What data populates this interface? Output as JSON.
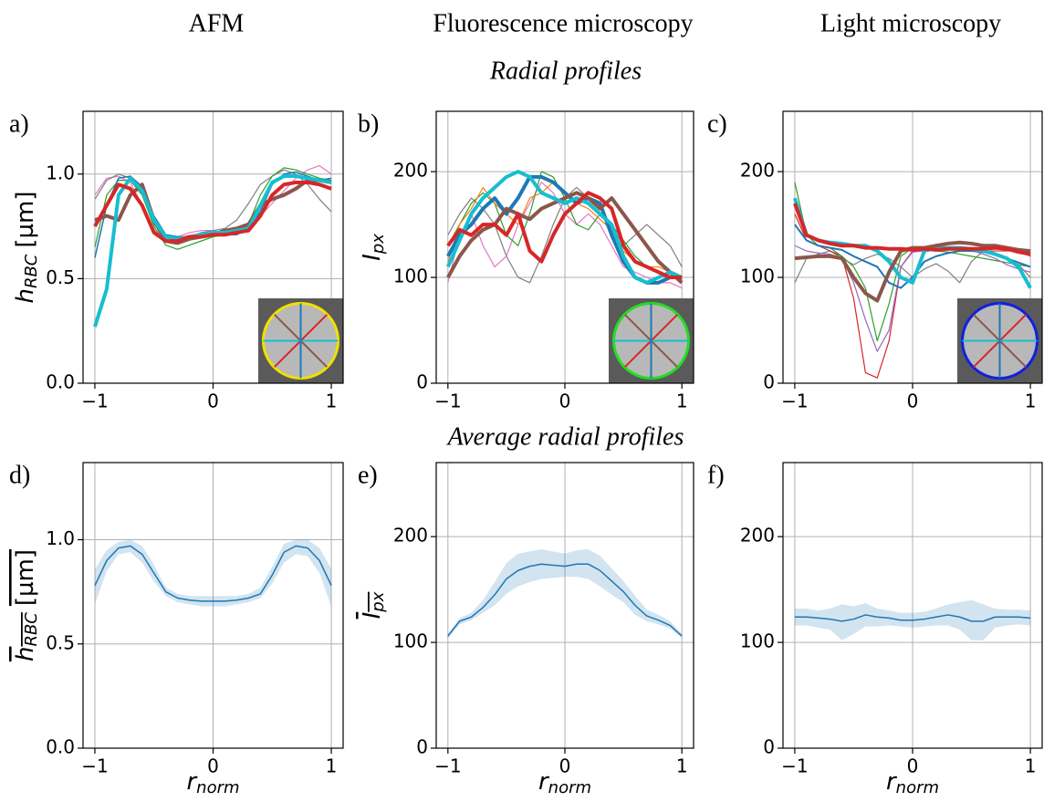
{
  "columns": [
    "AFM",
    "Fluorescence microscopy",
    "Light microscopy"
  ],
  "section_titles": [
    "Radial profiles",
    "Average radial profiles"
  ],
  "chart_data": [
    {
      "type": "line",
      "label": "a)",
      "ylabel": "h",
      "ylabel_sub": "RBC",
      "ylabel_unit": "[µm]",
      "xlim": [
        -1.1,
        1.1
      ],
      "ylim": [
        0,
        1.3
      ],
      "xticks": [
        {
          "value": -1,
          "label": "−1"
        },
        0,
        1
      ],
      "yticks": [
        {
          "value": 0,
          "label": "0.0"
        },
        0.5,
        {
          "value": 1,
          "label": "1.0"
        }
      ],
      "grid": true,
      "inset_color": "#f0e000",
      "x": [
        -1,
        -0.9,
        -0.8,
        -0.7,
        -0.6,
        -0.5,
        -0.4,
        -0.3,
        -0.2,
        -0.1,
        0,
        0.1,
        0.2,
        0.3,
        0.4,
        0.5,
        0.6,
        0.7,
        0.8,
        0.9,
        1
      ],
      "series": [
        {
          "color": "#e377c2",
          "linewidth": 1.2,
          "values": [
            0.9,
            0.98,
            0.99,
            0.96,
            0.85,
            0.73,
            0.7,
            0.7,
            0.72,
            0.73,
            0.73,
            0.72,
            0.73,
            0.75,
            0.8,
            0.86,
            0.92,
            0.98,
            1.02,
            1.04,
            1.0
          ]
        },
        {
          "color": "#7f7f7f",
          "linewidth": 1.2,
          "values": [
            0.88,
            0.97,
            1.0,
            0.98,
            0.9,
            0.76,
            0.7,
            0.69,
            0.7,
            0.72,
            0.73,
            0.74,
            0.78,
            0.86,
            0.95,
            0.99,
            1.02,
            1.0,
            0.95,
            0.88,
            0.82
          ]
        },
        {
          "color": "#2ca02c",
          "linewidth": 1.2,
          "values": [
            0.65,
            0.9,
            0.97,
            0.97,
            0.9,
            0.75,
            0.66,
            0.64,
            0.66,
            0.68,
            0.7,
            0.71,
            0.72,
            0.76,
            0.9,
            0.99,
            1.03,
            1.02,
            1.0,
            0.98,
            0.97
          ]
        },
        {
          "color": "#1f77b4",
          "linewidth": 1.5,
          "values": [
            0.6,
            0.85,
            0.98,
            0.99,
            0.94,
            0.8,
            0.71,
            0.7,
            0.7,
            0.71,
            0.72,
            0.71,
            0.71,
            0.74,
            0.82,
            0.95,
            1.0,
            1.01,
            0.99,
            0.97,
            0.98
          ]
        },
        {
          "color": "#8c564b",
          "linewidth": 4,
          "values": [
            0.78,
            0.8,
            0.78,
            0.9,
            0.95,
            0.78,
            0.68,
            0.67,
            0.69,
            0.7,
            0.71,
            0.73,
            0.74,
            0.76,
            0.85,
            0.88,
            0.9,
            0.93,
            0.97,
            0.97,
            0.96
          ]
        },
        {
          "color": "#17becf",
          "linewidth": 4,
          "values": [
            0.27,
            0.45,
            0.9,
            0.98,
            0.92,
            0.78,
            0.7,
            0.69,
            0.7,
            0.71,
            0.72,
            0.72,
            0.73,
            0.74,
            0.85,
            0.96,
            0.99,
            0.99,
            0.98,
            0.97,
            0.96
          ]
        },
        {
          "color": "#d62728",
          "linewidth": 4,
          "values": [
            0.75,
            0.85,
            0.95,
            0.93,
            0.85,
            0.72,
            0.68,
            0.68,
            0.7,
            0.7,
            0.71,
            0.71,
            0.72,
            0.73,
            0.8,
            0.9,
            0.95,
            0.96,
            0.96,
            0.95,
            0.93
          ]
        }
      ]
    },
    {
      "type": "line",
      "label": "b)",
      "ylabel": "I",
      "ylabel_sub": "px",
      "xlim": [
        -1.1,
        1.1
      ],
      "ylim": [
        0,
        257
      ],
      "xticks": [
        {
          "value": -1,
          "label": "−1"
        },
        0,
        1
      ],
      "yticks": [
        0,
        100,
        200
      ],
      "grid": true,
      "inset_color": "#22dd22",
      "x": [
        -1,
        -0.9,
        -0.8,
        -0.7,
        -0.6,
        -0.5,
        -0.4,
        -0.3,
        -0.2,
        -0.1,
        0,
        0.1,
        0.2,
        0.3,
        0.4,
        0.5,
        0.6,
        0.7,
        0.8,
        0.9,
        1
      ],
      "series": [
        {
          "color": "#7f7f7f",
          "linewidth": 1.2,
          "values": [
            140,
            160,
            175,
            165,
            150,
            120,
            100,
            95,
            120,
            150,
            175,
            185,
            175,
            165,
            150,
            130,
            140,
            150,
            140,
            130,
            110
          ]
        },
        {
          "color": "#e377c2",
          "linewidth": 1.2,
          "values": [
            95,
            140,
            160,
            130,
            110,
            120,
            150,
            170,
            190,
            180,
            160,
            150,
            160,
            150,
            130,
            110,
            105,
            100,
            95,
            95,
            90
          ]
        },
        {
          "color": "#2ca02c",
          "linewidth": 1.2,
          "values": [
            130,
            150,
            170,
            180,
            170,
            140,
            130,
            160,
            200,
            195,
            175,
            150,
            145,
            160,
            150,
            135,
            120,
            110,
            105,
            100,
            98
          ]
        },
        {
          "color": "#ff7f0e",
          "linewidth": 1.2,
          "values": [
            115,
            150,
            165,
            185,
            170,
            160,
            150,
            175,
            180,
            190,
            180,
            170,
            165,
            155,
            145,
            125,
            115,
            110,
            110,
            105,
            100
          ]
        },
        {
          "color": "#1f77b4",
          "linewidth": 4,
          "values": [
            120,
            140,
            150,
            165,
            175,
            160,
            175,
            195,
            195,
            190,
            180,
            170,
            175,
            170,
            140,
            115,
            100,
            95,
            95,
            100,
            100
          ]
        },
        {
          "color": "#8c564b",
          "linewidth": 4,
          "values": [
            100,
            120,
            135,
            145,
            150,
            165,
            160,
            155,
            165,
            170,
            175,
            180,
            175,
            165,
            175,
            160,
            145,
            130,
            115,
            105,
            95
          ]
        },
        {
          "color": "#17becf",
          "linewidth": 4,
          "values": [
            110,
            135,
            160,
            175,
            185,
            195,
            200,
            195,
            180,
            175,
            170,
            175,
            170,
            160,
            150,
            120,
            100,
            95,
            100,
            105,
            100
          ]
        },
        {
          "color": "#d62728",
          "linewidth": 4,
          "values": [
            130,
            145,
            140,
            150,
            150,
            140,
            160,
            125,
            115,
            140,
            160,
            170,
            180,
            175,
            165,
            130,
            115,
            110,
            105,
            100,
            100
          ]
        }
      ]
    },
    {
      "type": "line",
      "label": "c)",
      "xlim": [
        -1.1,
        1.1
      ],
      "ylim": [
        0,
        257
      ],
      "xticks": [
        {
          "value": -1,
          "label": "−1"
        },
        0,
        1
      ],
      "yticks": [
        0,
        100,
        200
      ],
      "grid": true,
      "inset_color": "#1020e0",
      "x": [
        -1,
        -0.9,
        -0.8,
        -0.7,
        -0.6,
        -0.5,
        -0.4,
        -0.3,
        -0.2,
        -0.1,
        0,
        0.1,
        0.2,
        0.3,
        0.4,
        0.5,
        0.6,
        0.7,
        0.8,
        0.9,
        1
      ],
      "series": [
        {
          "color": "#7f7f7f",
          "linewidth": 1.2,
          "values": [
            95,
            118,
            122,
            125,
            118,
            112,
            118,
            122,
            118,
            110,
            100,
            108,
            113,
            106,
            95,
            115,
            125,
            122,
            118,
            112,
            100
          ]
        },
        {
          "color": "#d62728",
          "linewidth": 1.2,
          "values": [
            160,
            135,
            130,
            125,
            120,
            80,
            10,
            5,
            40,
            110,
            125,
            128,
            128,
            128,
            125,
            125,
            125,
            125,
            125,
            125,
            120
          ]
        },
        {
          "color": "#2ca02c",
          "linewidth": 1.2,
          "values": [
            190,
            140,
            130,
            128,
            120,
            110,
            90,
            40,
            75,
            120,
            128,
            126,
            125,
            124,
            122,
            120,
            118,
            116,
            114,
            112,
            110
          ]
        },
        {
          "color": "#9467bd",
          "linewidth": 1.2,
          "values": [
            130,
            125,
            123,
            122,
            118,
            95,
            60,
            30,
            50,
            110,
            124,
            125,
            127,
            128,
            128,
            126,
            122,
            118,
            112,
            108,
            105
          ]
        },
        {
          "color": "#1f77b4",
          "linewidth": 2,
          "values": [
            150,
            135,
            130,
            128,
            126,
            120,
            115,
            110,
            95,
            90,
            100,
            115,
            120,
            123,
            125,
            125,
            124,
            122,
            118,
            114,
            110
          ]
        },
        {
          "color": "#17becf",
          "linewidth": 4,
          "values": [
            175,
            140,
            135,
            133,
            132,
            130,
            130,
            125,
            115,
            100,
            95,
            125,
            128,
            128,
            128,
            127,
            125,
            122,
            118,
            110,
            90
          ]
        },
        {
          "color": "#8c564b",
          "linewidth": 4,
          "values": [
            118,
            119,
            120,
            120,
            118,
            100,
            85,
            78,
            105,
            125,
            128,
            128,
            130,
            132,
            133,
            132,
            130,
            130,
            128,
            126,
            125
          ]
        },
        {
          "color": "#d62728",
          "linewidth": 4,
          "values": [
            170,
            140,
            135,
            132,
            130,
            130,
            128,
            128,
            127,
            127,
            126,
            127,
            126,
            127,
            127,
            127,
            127,
            128,
            127,
            124,
            122
          ]
        }
      ]
    },
    {
      "type": "line",
      "label": "d)",
      "ylabel": "h",
      "ylabel_sub": "RBC",
      "ylabel_unit": "[µm]",
      "ylabel_overline": true,
      "xlabel": "r",
      "xlabel_sub": "norm",
      "xlim": [
        -1.1,
        1.1
      ],
      "ylim": [
        0,
        1.37
      ],
      "xticks": [
        {
          "value": -1,
          "label": "−1"
        },
        0,
        1
      ],
      "yticks": [
        {
          "value": 0,
          "label": "0.0"
        },
        0.5,
        {
          "value": 1,
          "label": "1.0"
        }
      ],
      "grid": true,
      "x": [
        -1,
        -0.9,
        -0.8,
        -0.7,
        -0.6,
        -0.5,
        -0.4,
        -0.3,
        -0.2,
        -0.1,
        0,
        0.1,
        0.2,
        0.3,
        0.4,
        0.5,
        0.6,
        0.7,
        0.8,
        0.9,
        1
      ],
      "band": {
        "color": "#1f77b4",
        "lower": [
          0.69,
          0.85,
          0.93,
          0.94,
          0.89,
          0.8,
          0.73,
          0.7,
          0.69,
          0.68,
          0.68,
          0.68,
          0.69,
          0.7,
          0.72,
          0.79,
          0.89,
          0.93,
          0.92,
          0.84,
          0.68
        ],
        "upper": [
          0.86,
          0.95,
          0.99,
          1.0,
          0.97,
          0.88,
          0.77,
          0.74,
          0.73,
          0.73,
          0.73,
          0.73,
          0.73,
          0.74,
          0.77,
          0.87,
          0.98,
          1.0,
          1.0,
          0.96,
          0.86
        ]
      },
      "series": [
        {
          "color": "#1f77b4",
          "linewidth": 1.5,
          "values": [
            0.78,
            0.9,
            0.96,
            0.97,
            0.93,
            0.84,
            0.75,
            0.72,
            0.71,
            0.705,
            0.705,
            0.705,
            0.71,
            0.72,
            0.74,
            0.83,
            0.94,
            0.97,
            0.96,
            0.9,
            0.78
          ]
        }
      ]
    },
    {
      "type": "line",
      "label": "e)",
      "ylabel": "I",
      "ylabel_sub": "px",
      "ylabel_overline": true,
      "xlabel": "r",
      "xlabel_sub": "norm",
      "xlim": [
        -1.1,
        1.1
      ],
      "ylim": [
        0,
        270
      ],
      "xticks": [
        {
          "value": -1,
          "label": "−1"
        },
        0,
        1
      ],
      "yticks": [
        0,
        100,
        200
      ],
      "grid": true,
      "x": [
        -1,
        -0.9,
        -0.8,
        -0.7,
        -0.6,
        -0.5,
        -0.4,
        -0.3,
        -0.2,
        -0.1,
        0,
        0.1,
        0.2,
        0.3,
        0.4,
        0.5,
        0.6,
        0.7,
        0.8,
        0.9,
        1
      ],
      "band": {
        "color": "#1f77b4",
        "lower": [
          104,
          117,
          121,
          128,
          135,
          146,
          153,
          157,
          160,
          161,
          162,
          162,
          160,
          153,
          145,
          138,
          126,
          120,
          117,
          113,
          104
        ],
        "upper": [
          108,
          123,
          128,
          140,
          157,
          175,
          184,
          186,
          188,
          186,
          184,
          187,
          188,
          182,
          170,
          158,
          144,
          131,
          126,
          120,
          108
        ]
      },
      "series": [
        {
          "color": "#1f77b4",
          "linewidth": 1.5,
          "values": [
            106,
            120,
            124,
            133,
            145,
            160,
            168,
            172,
            174,
            173,
            172,
            174,
            174,
            168,
            158,
            148,
            135,
            125,
            121,
            116,
            106
          ]
        }
      ]
    },
    {
      "type": "line",
      "label": "f)",
      "xlabel": "r",
      "xlabel_sub": "norm",
      "xlim": [
        -1.1,
        1.1
      ],
      "ylim": [
        0,
        270
      ],
      "xticks": [
        {
          "value": -1,
          "label": "−1"
        },
        0,
        1
      ],
      "yticks": [
        0,
        100,
        200
      ],
      "grid": true,
      "x": [
        -1,
        -0.9,
        -0.8,
        -0.7,
        -0.6,
        -0.5,
        -0.4,
        -0.3,
        -0.2,
        -0.1,
        0,
        0.1,
        0.2,
        0.3,
        0.4,
        0.5,
        0.6,
        0.7,
        0.8,
        0.9,
        1
      ],
      "band": {
        "color": "#1f77b4",
        "lower": [
          116,
          116,
          114,
          112,
          102,
          108,
          115,
          115,
          116,
          115,
          114,
          115,
          116,
          116,
          112,
          102,
          102,
          114,
          116,
          117,
          116
        ],
        "upper": [
          132,
          132,
          130,
          132,
          136,
          134,
          137,
          132,
          130,
          128,
          128,
          129,
          132,
          136,
          138,
          140,
          136,
          132,
          131,
          131,
          130
        ]
      },
      "series": [
        {
          "color": "#1f77b4",
          "linewidth": 1.5,
          "values": [
            124,
            124,
            123,
            122,
            120,
            122,
            126,
            124,
            123,
            121,
            121,
            122,
            124,
            126,
            124,
            120,
            120,
            124,
            124,
            124,
            123
          ]
        }
      ]
    }
  ]
}
